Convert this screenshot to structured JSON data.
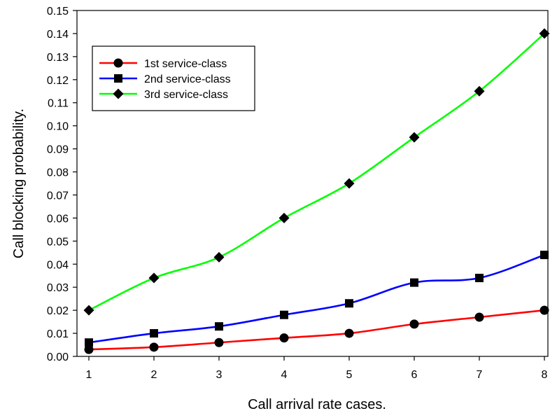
{
  "chart_data": {
    "type": "line",
    "title": "",
    "xlabel": "Call arrival rate cases.",
    "ylabel": "Call blocking probability.",
    "x": [
      1,
      2,
      3,
      4,
      5,
      6,
      7,
      8
    ],
    "xlim": [
      1,
      8
    ],
    "ylim": [
      0,
      0.15
    ],
    "x_ticks": [
      "1",
      "2",
      "3",
      "4",
      "5",
      "6",
      "7",
      "8"
    ],
    "y_ticks": [
      "0.00",
      "0.01",
      "0.02",
      "0.03",
      "0.04",
      "0.05",
      "0.06",
      "0.07",
      "0.08",
      "0.09",
      "0.10",
      "0.11",
      "0.12",
      "0.13",
      "0.14",
      "0.15"
    ],
    "grid": false,
    "legend_position": "top-left",
    "series": [
      {
        "name": "1st service-class",
        "color": "#ff0000",
        "marker": "circle",
        "values": [
          0.003,
          0.004,
          0.006,
          0.008,
          0.01,
          0.014,
          0.017,
          0.02
        ]
      },
      {
        "name": "2nd service-class",
        "color": "#0000ff",
        "marker": "square",
        "values": [
          0.006,
          0.01,
          0.013,
          0.018,
          0.023,
          0.032,
          0.034,
          0.044
        ]
      },
      {
        "name": "3rd service-class",
        "color": "#00ff00",
        "marker": "diamond",
        "values": [
          0.02,
          0.034,
          0.043,
          0.06,
          0.075,
          0.095,
          0.115,
          0.14
        ]
      }
    ]
  }
}
